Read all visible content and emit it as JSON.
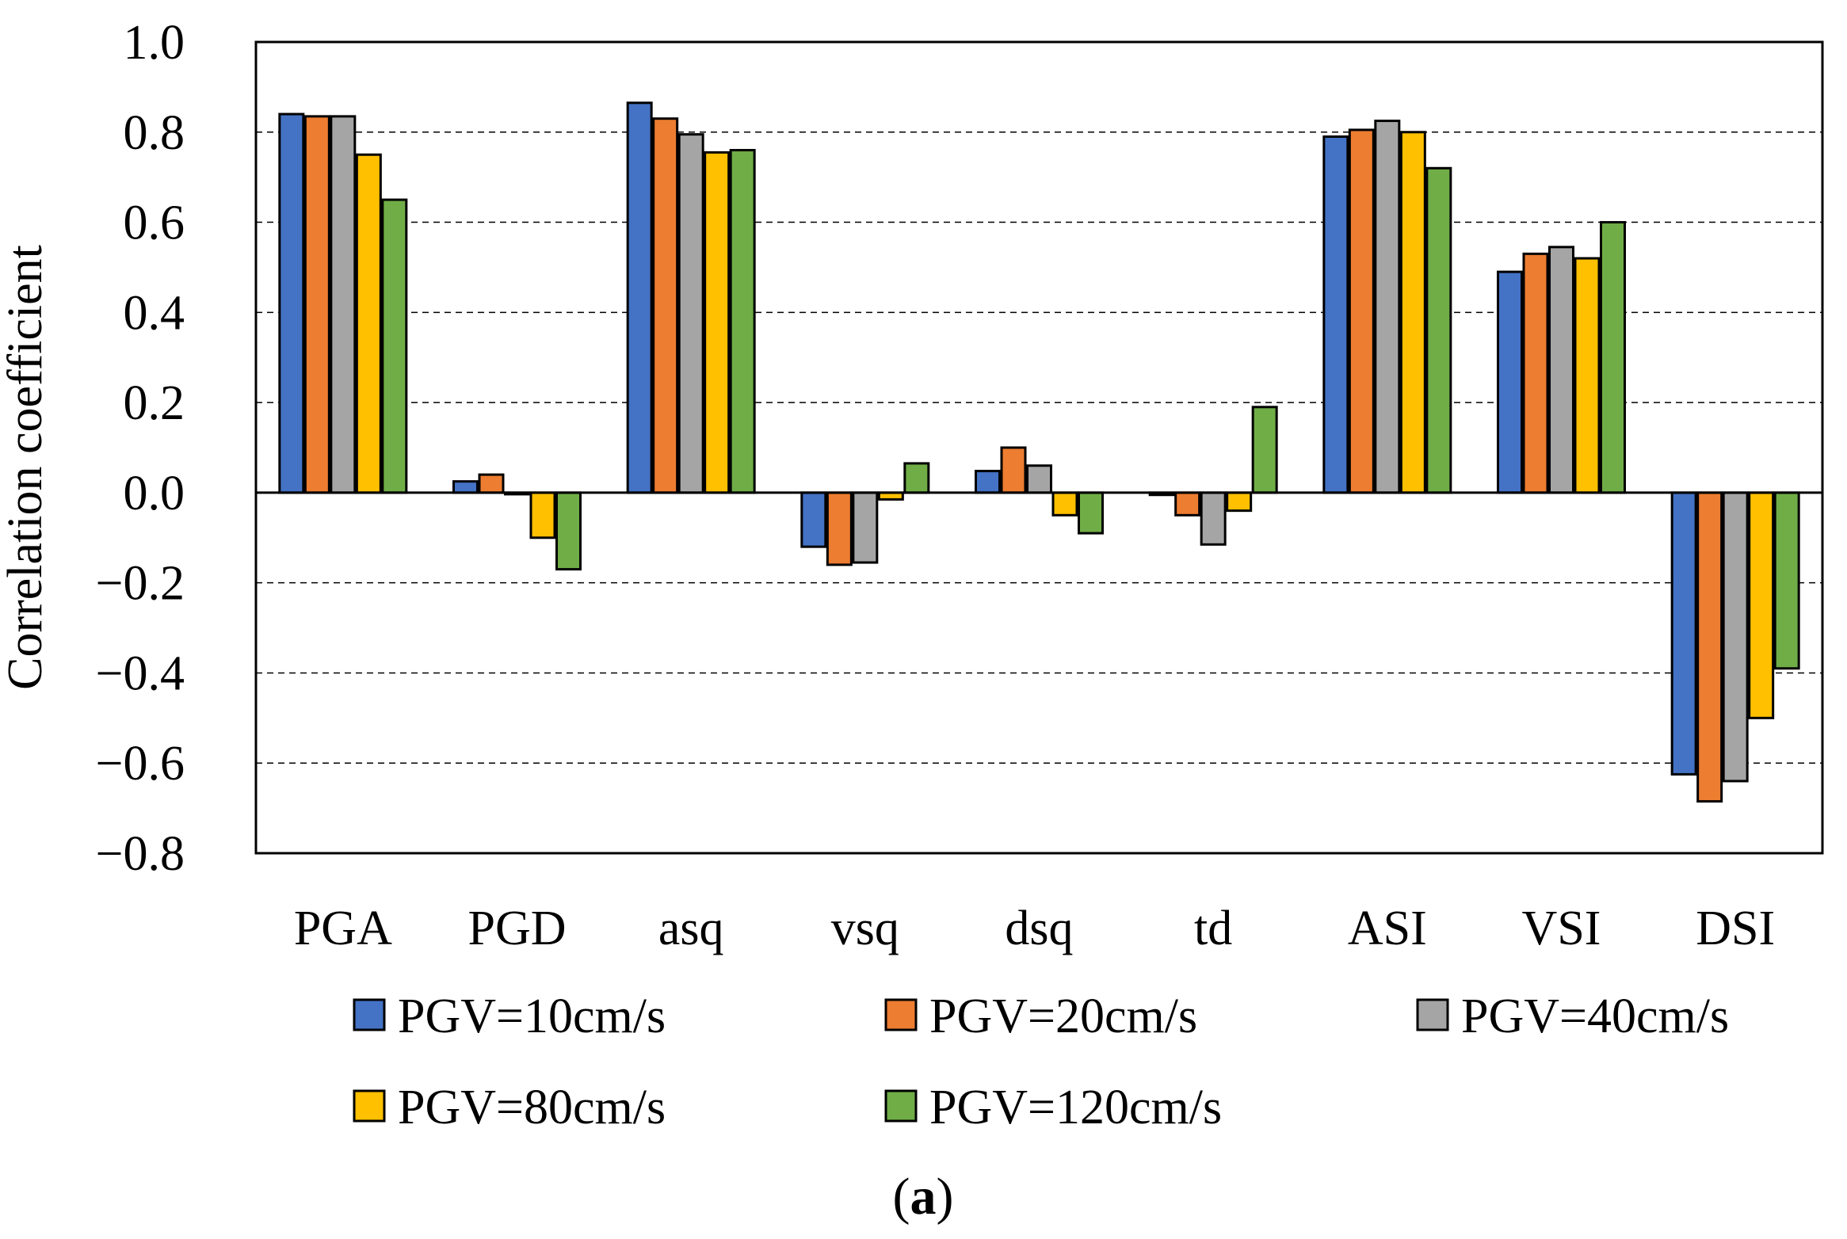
{
  "chart_data": {
    "type": "bar",
    "title": "",
    "xlabel": "",
    "ylabel": "Correlation coefficient",
    "ylim": [
      -0.8,
      1.0
    ],
    "yticks": [
      1.0,
      0.8,
      0.6,
      0.4,
      0.2,
      0.0,
      -0.2,
      -0.4,
      -0.6,
      -0.8
    ],
    "ytick_labels": [
      "1.0",
      "0.8",
      "0.6",
      "0.4",
      "0.2",
      "0.0",
      "−0.2",
      "−0.4",
      "−0.6",
      "−0.8"
    ],
    "grid": "horizontal-dashed",
    "categories": [
      "PGA",
      "PGD",
      "asq",
      "vsq",
      "dsq",
      "td",
      "ASI",
      "VSI",
      "DSI"
    ],
    "series": [
      {
        "name": "PGV=10cm/s",
        "color": "#4472C4",
        "values": [
          0.84,
          0.025,
          0.865,
          -0.12,
          0.048,
          -0.005,
          0.79,
          0.49,
          -0.625
        ]
      },
      {
        "name": "PGV=20cm/s",
        "color": "#ED7D31",
        "values": [
          0.835,
          0.04,
          0.83,
          -0.16,
          0.1,
          -0.05,
          0.805,
          0.53,
          -0.685
        ]
      },
      {
        "name": "PGV=40cm/s",
        "color": "#A5A5A5",
        "values": [
          0.835,
          0.0,
          0.795,
          -0.155,
          0.06,
          -0.115,
          0.825,
          0.545,
          -0.64
        ]
      },
      {
        "name": "PGV=80cm/s",
        "color": "#FFC000",
        "values": [
          0.75,
          -0.1,
          0.755,
          -0.015,
          -0.05,
          -0.04,
          0.8,
          0.52,
          -0.5
        ]
      },
      {
        "name": "PGV=120cm/s",
        "color": "#70AD47",
        "values": [
          0.65,
          -0.17,
          0.76,
          0.065,
          -0.09,
          0.19,
          0.72,
          0.6,
          -0.39
        ]
      }
    ],
    "legend_position": "bottom",
    "caption_open": "(",
    "caption_letter": "a",
    "caption_close": ")"
  }
}
